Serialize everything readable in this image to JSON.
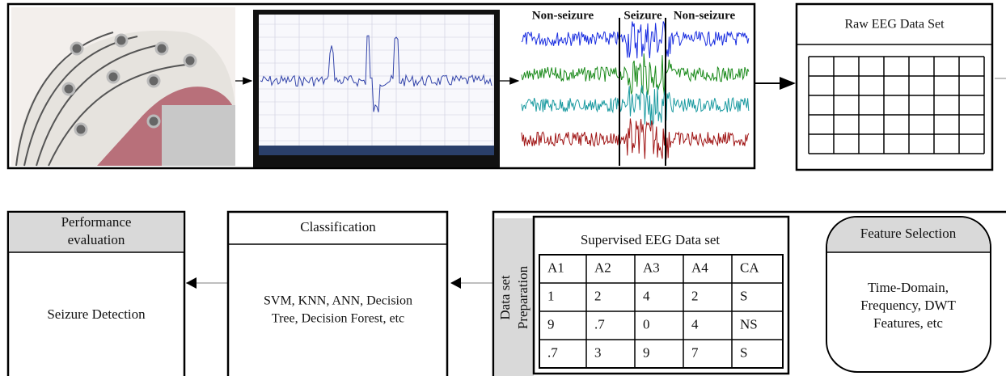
{
  "top": {
    "labels": [
      "Non-seizure",
      "Seizure",
      "Non-seizure"
    ],
    "raw_title": "Raw EEG Data Set"
  },
  "performance": {
    "title": [
      "Performance",
      "evaluation"
    ],
    "body": "Seizure Detection"
  },
  "classification": {
    "title": "Classification",
    "body": [
      "SVM, KNN, ANN, Decision",
      "Tree, Decision Forest, etc"
    ]
  },
  "preparation": {
    "side_label": [
      "Data set",
      "Preparation"
    ],
    "title": "Supervised EEG Data set",
    "table": {
      "rows": [
        [
          "A1",
          "A2",
          "A3",
          "A4",
          "CA"
        ],
        [
          "1",
          "2",
          "4",
          "2",
          "S"
        ],
        [
          "9",
          ".7",
          "0",
          "4",
          "NS"
        ],
        [
          ".7",
          "3",
          "9",
          "7",
          "S"
        ]
      ]
    }
  },
  "feature_selection": {
    "title": "Feature Selection",
    "body": [
      "Time-Domain,",
      "Frequency, DWT",
      "Features, etc"
    ]
  }
}
